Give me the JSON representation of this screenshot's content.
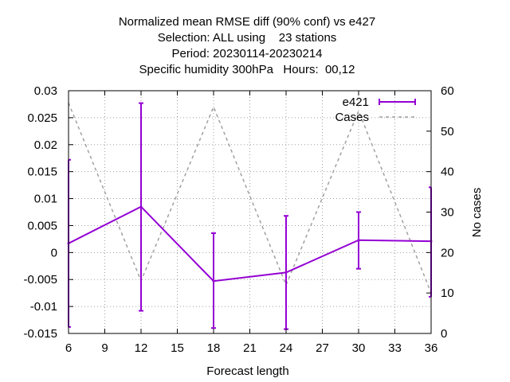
{
  "chart_data": {
    "type": "line",
    "title_lines": [
      "Normalized mean RMSE diff (90% conf) vs e427",
      "Selection: ALL using    23 stations",
      "Period: 20230114-20230214",
      "Specific humidity 300hPa   Hours:  00,12"
    ],
    "xlabel": "Forecast length",
    "ylabel": "",
    "y2label": "No cases",
    "xlim": [
      6,
      36
    ],
    "ylim": [
      -0.015,
      0.03
    ],
    "y2lim": [
      0,
      60
    ],
    "x_ticks": [
      6,
      9,
      12,
      15,
      18,
      21,
      24,
      27,
      30,
      33,
      36
    ],
    "y_ticks": [
      -0.015,
      -0.01,
      -0.005,
      0,
      0.005,
      0.01,
      0.015,
      0.02,
      0.025,
      0.03
    ],
    "y_tick_labels": [
      "-0.015",
      "-0.01",
      "-0.005",
      "0",
      "0.005",
      "0.01",
      "0.015",
      "0.02",
      "0.025",
      "0.03"
    ],
    "y2_ticks": [
      0,
      10,
      20,
      30,
      40,
      50,
      60
    ],
    "grid": true,
    "legend_position": "top-right",
    "series": [
      {
        "name": "e421",
        "color": "#9400d3",
        "axis": "left",
        "style": "line-errorbars",
        "x": [
          6,
          12,
          18,
          24,
          30,
          36
        ],
        "y": [
          0.0017,
          0.0085,
          -0.0053,
          -0.0037,
          0.0023,
          0.0021
        ],
        "y_low": [
          -0.0138,
          -0.0108,
          -0.014,
          -0.0142,
          -0.003,
          -0.0082
        ],
        "y_high": [
          0.0172,
          0.0277,
          0.0036,
          0.0068,
          0.0075,
          0.0121
        ]
      },
      {
        "name": "Cases",
        "color": "#a0a0a0",
        "axis": "right",
        "style": "dashed",
        "x": [
          6,
          12,
          18,
          24,
          30,
          36
        ],
        "y": [
          57,
          13,
          56,
          12,
          55,
          10
        ]
      }
    ]
  }
}
